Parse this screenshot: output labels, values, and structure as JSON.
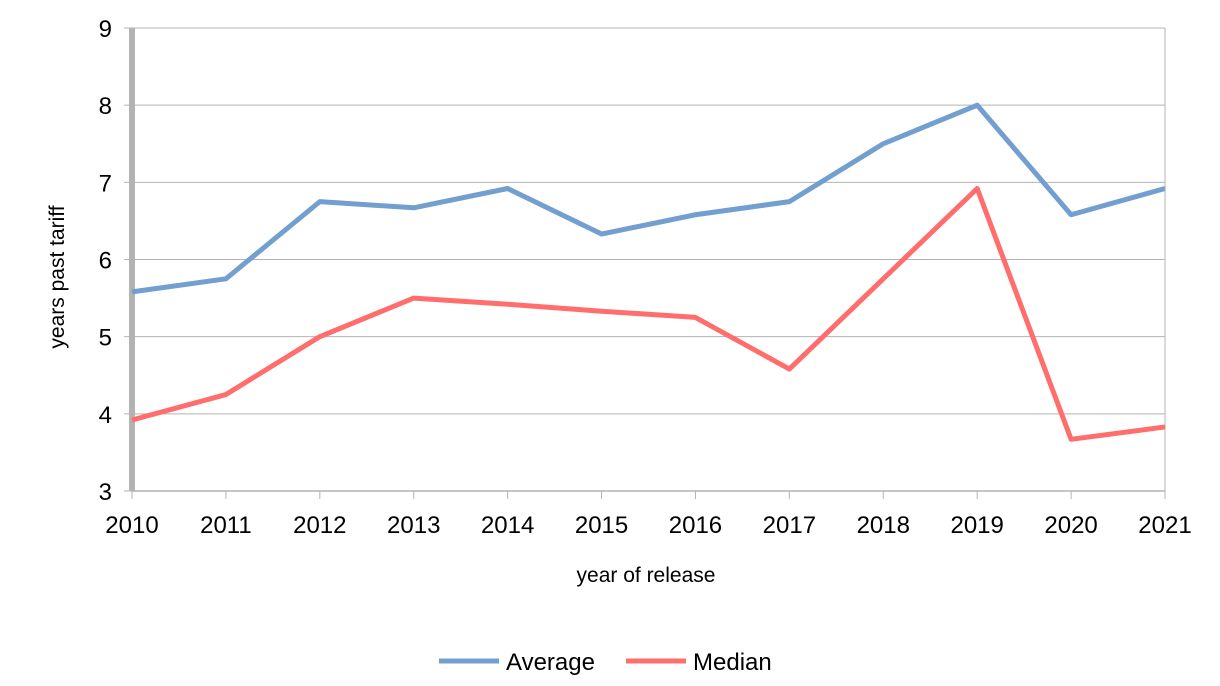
{
  "chart_data": {
    "type": "line",
    "title": "",
    "xlabel": "year of release",
    "ylabel": "years past tariff",
    "categories": [
      "2010",
      "2011",
      "2012",
      "2013",
      "2014",
      "2015",
      "2016",
      "2017",
      "2018",
      "2019",
      "2020",
      "2021"
    ],
    "yticks": [
      "3",
      "4",
      "5",
      "6",
      "7",
      "8",
      "9"
    ],
    "ylim": [
      3,
      9
    ],
    "grid": true,
    "legend_position": "bottom",
    "series": [
      {
        "name": "Average",
        "color": "#729fcf",
        "values": [
          5.58,
          5.75,
          6.75,
          6.67,
          6.92,
          6.33,
          6.58,
          6.75,
          7.5,
          8.0,
          6.58,
          6.92
        ]
      },
      {
        "name": "Median",
        "color": "#ff6d6d",
        "values": [
          3.92,
          4.25,
          5.0,
          5.5,
          5.42,
          5.33,
          5.25,
          4.58,
          5.75,
          6.92,
          3.67,
          3.83
        ]
      }
    ]
  }
}
